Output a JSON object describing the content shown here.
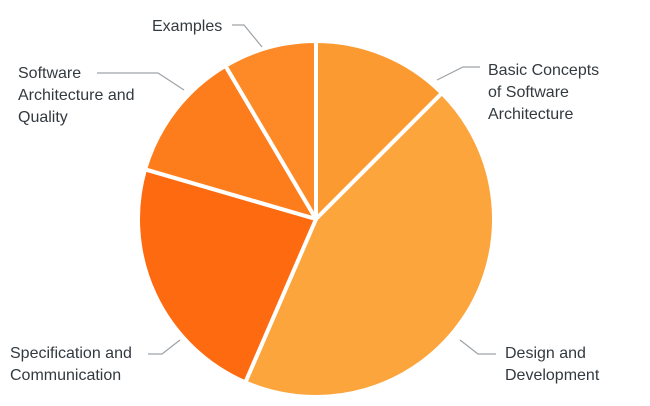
{
  "chart_data": {
    "type": "pie",
    "title": "",
    "slices": [
      {
        "label": [
          "Basic Concepts",
          "of Software",
          "Architecture"
        ],
        "value": 12.5,
        "color": "#fb9a31"
      },
      {
        "label": [
          "Design and",
          "Development"
        ],
        "value": 44.0,
        "color": "#fca53d"
      },
      {
        "label": [
          "Specification and",
          "Communication"
        ],
        "value": 23.0,
        "color": "#fd6a10"
      },
      {
        "label": [
          "Software",
          "Architecture and",
          "Quality"
        ],
        "value": 12.0,
        "color": "#fd7d1c"
      },
      {
        "label": [
          "Examples"
        ],
        "value": 8.5,
        "color": "#fd8a27"
      }
    ],
    "start_angle_deg": 0,
    "direction": "clockwise",
    "legend": "none"
  }
}
